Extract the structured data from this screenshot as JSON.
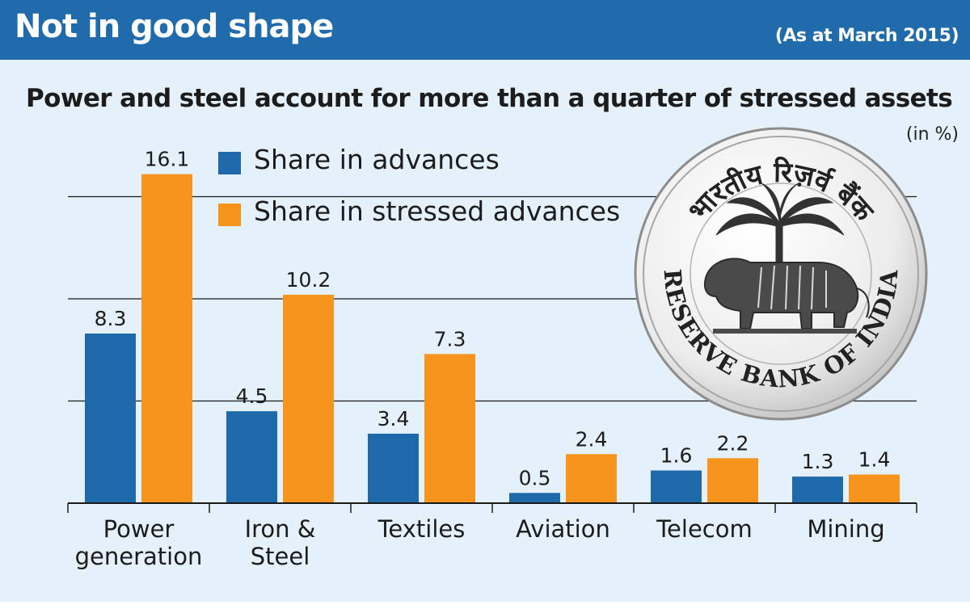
{
  "header": {
    "title": "Not in good shape",
    "date": "(As at March 2015)"
  },
  "subtitle": "Power and steel account for more than a quarter of stressed assets",
  "unit": "(in %)",
  "legend": {
    "advances_label": "Share in advances",
    "stressed_label": "Share in stressed advances"
  },
  "colors": {
    "header_bg": "#1f6bab",
    "panel_bg": "#e4f1fa",
    "advances": "#1e69aa",
    "stressed": "#f7941d"
  },
  "seal": {
    "top_text": "भारतीय रिज़र्व बैंक",
    "bottom_text": "RESERVE BANK OF INDIA"
  },
  "chart_data": {
    "type": "bar",
    "categories": [
      "Power generation",
      "Iron & Steel",
      "Textiles",
      "Aviation",
      "Telecom",
      "Mining"
    ],
    "category_lines": [
      [
        "Power",
        "generation"
      ],
      [
        "Iron &",
        "Steel"
      ],
      [
        "Textiles"
      ],
      [
        "Aviation"
      ],
      [
        "Telecom"
      ],
      [
        "Mining"
      ]
    ],
    "series": [
      {
        "name": "Share in advances",
        "values": [
          8.3,
          4.5,
          3.4,
          0.5,
          1.6,
          1.3
        ]
      },
      {
        "name": "Share in stressed advances",
        "values": [
          16.1,
          10.2,
          7.3,
          2.4,
          2.2,
          1.4
        ]
      }
    ],
    "ylim": [
      0,
      17
    ],
    "grid": true,
    "legend_position": "top-left"
  }
}
